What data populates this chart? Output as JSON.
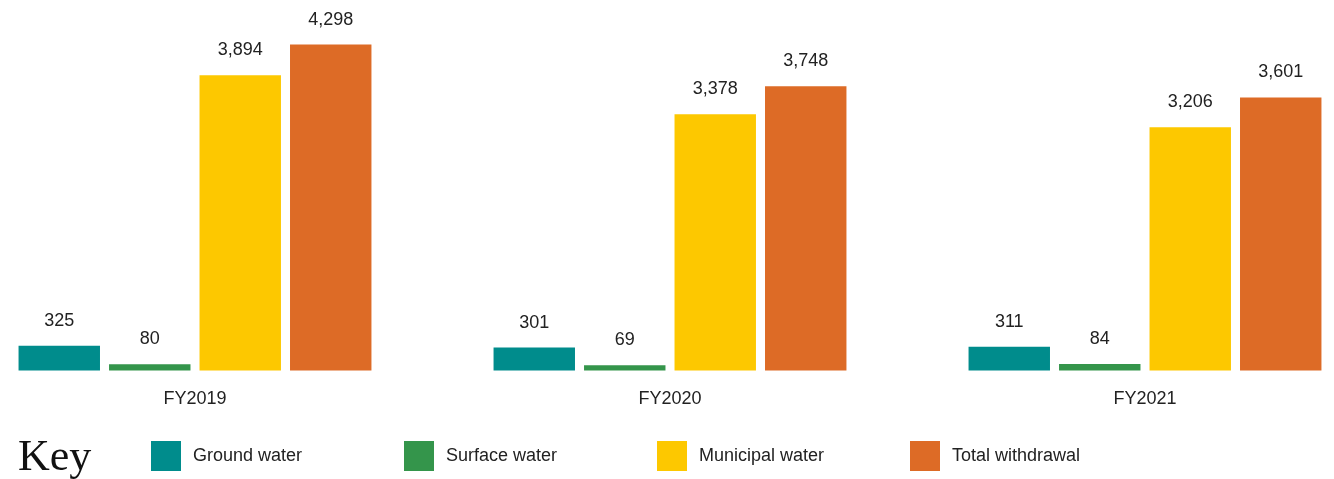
{
  "chart_data": {
    "type": "bar",
    "categories": [
      "FY2019",
      "FY2020",
      "FY2021"
    ],
    "series": [
      {
        "name": "Ground water",
        "color": "#008c8c",
        "values": [
          325,
          301,
          311
        ],
        "value_labels": [
          "325",
          "301",
          "311"
        ]
      },
      {
        "name": "Surface water",
        "color": "#34954b",
        "values": [
          80,
          69,
          84
        ],
        "value_labels": [
          "80",
          "69",
          "84"
        ]
      },
      {
        "name": "Municipal water",
        "color": "#fdc800",
        "values": [
          3894,
          3378,
          3206
        ],
        "value_labels": [
          "3,894",
          "3,378",
          "3,206"
        ]
      },
      {
        "name": "Total withdrawal",
        "color": "#dd6b26",
        "values": [
          4298,
          3748,
          3601
        ],
        "value_labels": [
          "4,298",
          "3,748",
          "3,601"
        ]
      }
    ],
    "legend": "bottom",
    "legend_title": "Key",
    "tick_labels": "x"
  }
}
